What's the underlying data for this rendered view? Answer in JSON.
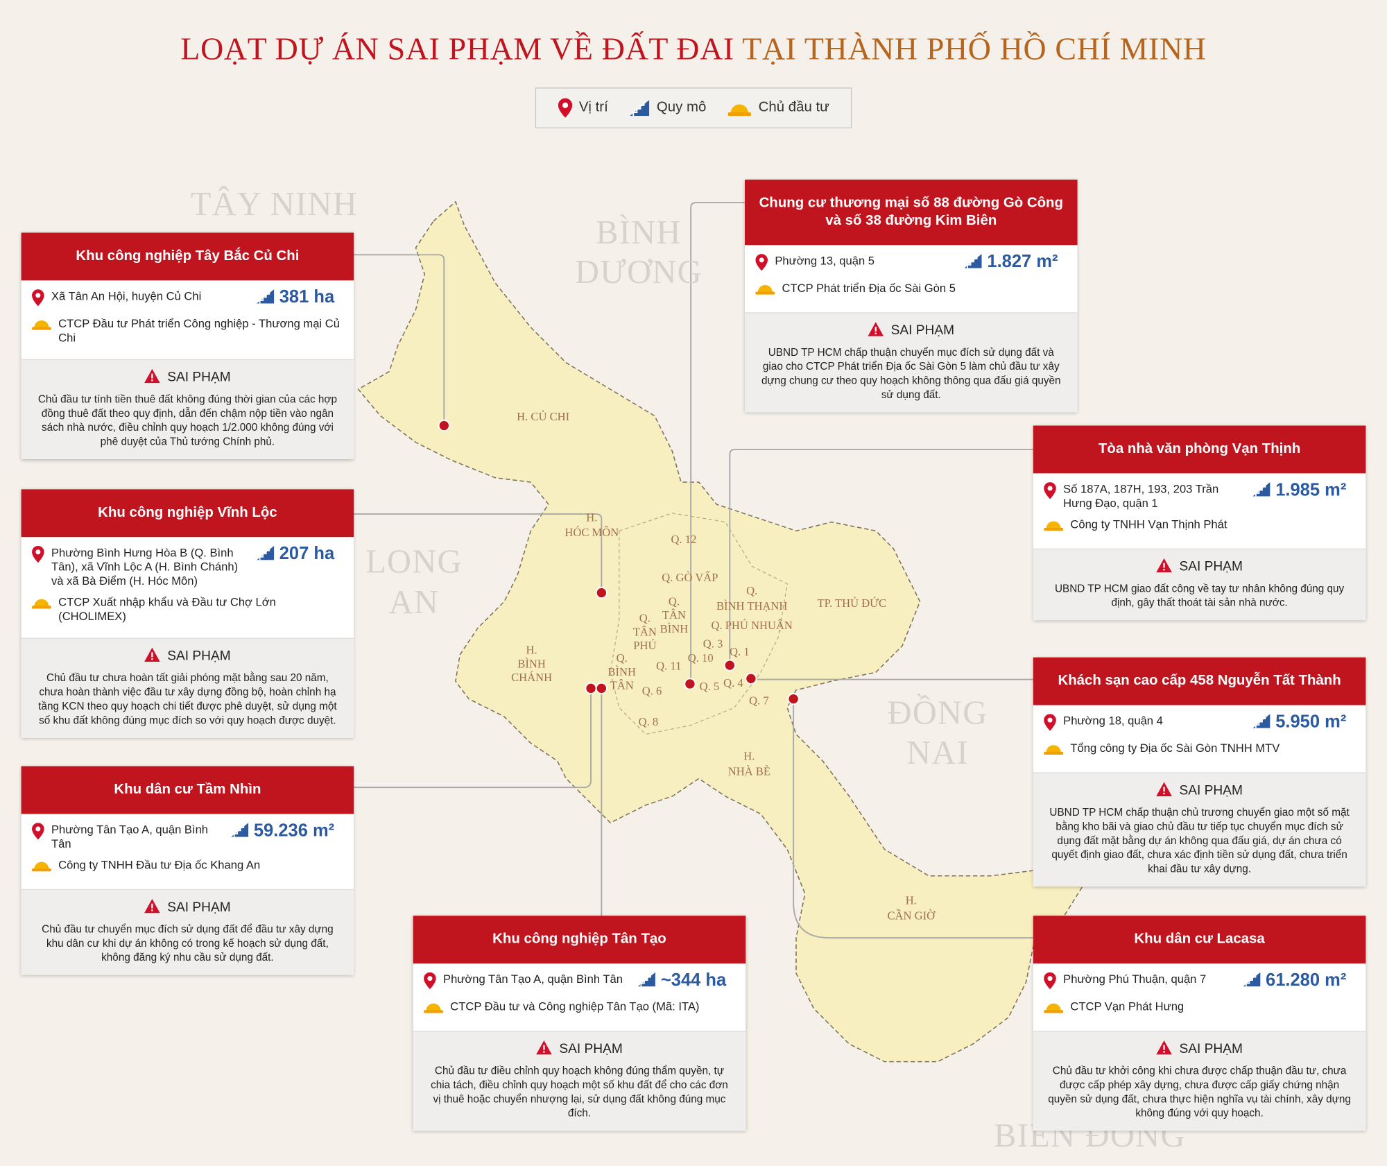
{
  "header": {
    "title_red": "LOẠT DỰ ÁN SAI PHẠM VỀ ĐẤT ĐAI",
    "title_brown": "TẠI THÀNH PHỐ HỒ CHÍ MINH"
  },
  "legend": [
    "Vị trí",
    "Quy mô",
    "Chủ đầu tư"
  ],
  "regions": [
    [
      "TÂY NINH"
    ],
    [
      "BÌNH",
      "DƯƠNG"
    ],
    [
      "LONG",
      "AN"
    ],
    [
      "ĐỒNG",
      "NAI"
    ],
    [
      "BIỂN ĐÔNG"
    ]
  ],
  "districts": [
    [
      "H. CỦ CHI"
    ],
    [
      "H.",
      "HÓC MÔN"
    ],
    [
      "Q. 12"
    ],
    [
      "Q. GÒ VẤP"
    ],
    [
      "Q.",
      "BÌNH THẠNH"
    ],
    [
      "TP. THỦ ĐỨC"
    ],
    [
      "Q.",
      "TÂN",
      "BÌNH"
    ],
    [
      "Q.",
      "TÂN",
      "PHÚ"
    ],
    [
      "Q. PHÚ NHUẬN"
    ],
    [
      "Q. 3"
    ],
    [
      "Q. 1"
    ],
    [
      "Q. 10"
    ],
    [
      "Q. 11"
    ],
    [
      "H.",
      "BÌNH",
      "CHÁNH"
    ],
    [
      "Q.",
      "BÌNH",
      "TÂN"
    ],
    [
      "Q. 6"
    ],
    [
      "Q. 5"
    ],
    [
      "Q. 4"
    ],
    [
      "Q. 7"
    ],
    [
      "Q. 8"
    ],
    [
      "H.",
      "NHÀ BÈ"
    ],
    [
      "H.",
      "CẦN GIỜ"
    ]
  ],
  "violation_heading": "SAI PHẠM",
  "cards": [
    {
      "title": "Khu công nghiệp Tây Bắc Củ Chi",
      "location": "Xã Tân An Hội, huyện Củ Chi",
      "scale": "381 ha",
      "investor": "CTCP Đầu tư Phát triển Công nghiệp - Thương mại Củ Chi",
      "violation": "Chủ đầu tư tính tiền thuê đất không đúng thời gian của các hợp đồng thuê đất theo quy định, dẫn đến chậm nộp tiền vào ngân sách nhà nước, điều chỉnh quy hoạch 1/2.000 không đúng với phê duyệt của Thủ tướng Chính phủ."
    },
    {
      "title": "Khu công nghiệp Vĩnh Lộc",
      "location": "Phường Bình Hưng Hòa B (Q. Bình Tân), xã Vĩnh Lộc A (H. Bình Chánh) và xã Bà Điểm (H. Hóc Môn)",
      "scale": "207 ha",
      "investor": "CTCP Xuất nhập khẩu và Đầu tư Chợ Lớn (CHOLIMEX)",
      "violation": "Chủ đầu tư chưa hoàn tất giải phóng mặt bằng sau 20 năm, chưa hoàn thành việc đầu tư xây dựng đồng bộ, hoàn chỉnh hạ tầng KCN theo quy hoạch chi tiết được phê duyệt, sử dụng một số khu đất không đúng mục đích so với quy hoạch được duyệt."
    },
    {
      "title": "Khu dân cư Tầm Nhìn",
      "location": "Phường Tân Tạo A, quận Bình Tân",
      "scale": "59.236 m²",
      "investor": "Công ty TNHH Đầu tư Địa ốc Khang An",
      "violation": "Chủ đầu tư chuyển mục đích sử dụng đất để đầu tư xây dựng khu dân cư khi dự án không có trong kế hoạch sử dụng đất, không đăng ký nhu cầu sử dụng đất."
    },
    {
      "title": "Khu công nghiệp Tân Tạo",
      "location": "Phường Tân Tạo A, quận Bình Tân",
      "scale": "~344 ha",
      "investor": "CTCP Đầu tư và Công nghiệp Tân Tạo (Mã: ITA)",
      "violation": "Chủ đầu tư điều chỉnh quy hoạch không đúng thẩm quyền, tự chia tách, điều chỉnh quy hoạch một số khu đất để cho các đơn vị thuê hoặc chuyển nhượng lại, sử dụng đất không đúng mục đích."
    },
    {
      "title": "Chung cư thương mại số 88 đường Gò Công và số 38 đường Kim Biên",
      "location": "Phường 13, quận 5",
      "scale": "1.827 m²",
      "investor": "CTCP Phát triển Địa ốc Sài Gòn 5",
      "violation": "UBND TP HCM chấp thuận chuyển mục đích sử dụng đất và giao cho CTCP Phát triển Địa ốc Sài Gòn 5 làm chủ đầu tư xây dựng chung cư theo quy hoạch không thông qua đấu giá quyền sử dụng đất."
    },
    {
      "title": "Tòa nhà văn phòng Vạn Thịnh",
      "location": "Số 187A, 187H, 193, 203 Trần Hưng Đạo, quận 1",
      "scale": "1.985 m²",
      "investor": "Công ty TNHH Vạn Thịnh Phát",
      "violation": "UBND TP HCM giao đất công về tay tư nhân không đúng quy định, gây thất thoát tài sản nhà nước."
    },
    {
      "title": "Khách sạn cao cấp 458 Nguyễn Tất Thành",
      "location": "Phường 18, quận 4",
      "scale": "5.950 m²",
      "investor": "Tổng công ty Địa ốc Sài Gòn TNHH MTV",
      "violation": "UBND TP HCM chấp thuận chủ trương chuyển giao một số mặt bằng kho bãi và giao chủ đầu tư tiếp tục chuyển mục đích sử dụng đất mặt bằng dự án không qua đấu giá, dự án chưa có quyết định giao đất, chưa xác định tiền sử dụng đất, chưa triển khai đầu tư xây dựng."
    },
    {
      "title": "Khu dân cư Lacasa",
      "location": "Phường Phú Thuận, quận 7",
      "scale": "61.280 m²",
      "investor": "CTCP Vạn Phát Hưng",
      "violation": "Chủ đầu tư khởi công khi chưa được chấp thuận đầu tư, chưa được cấp phép xây dựng, chưa được cấp giấy chứng nhận quyền sử dụng đất, chưa thực hiện nghĩa vụ tài chính, xây dựng không đúng với quy hoạch."
    }
  ]
}
